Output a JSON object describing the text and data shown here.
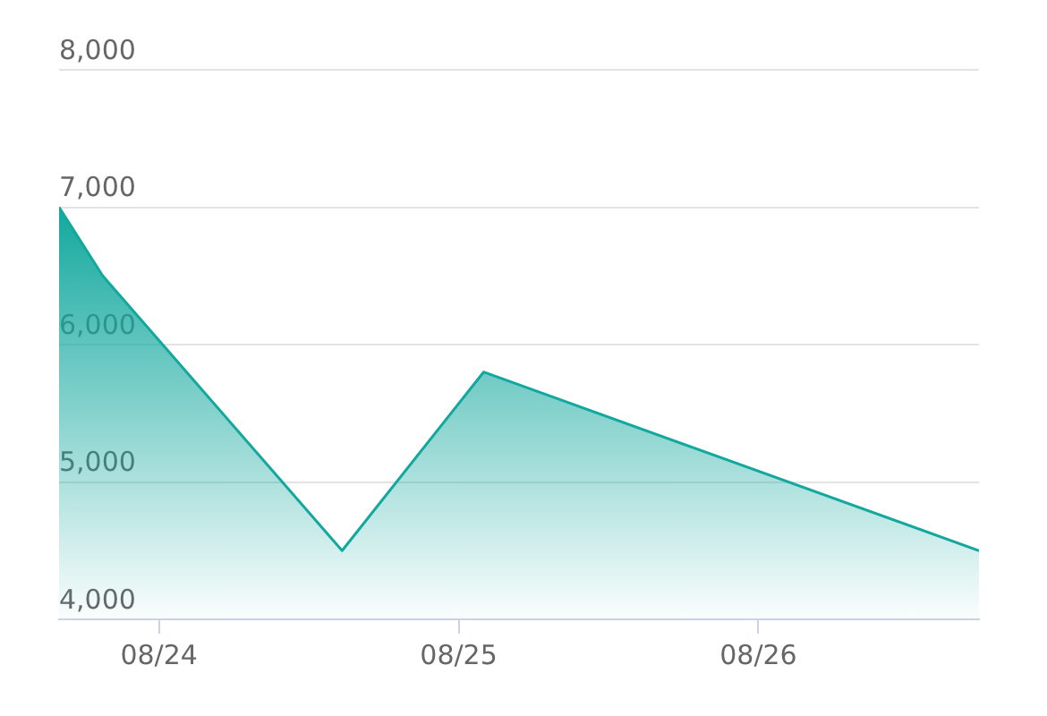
{
  "chart_data": {
    "type": "area",
    "x": [
      "--08-23T16:00",
      "--08-23T19:30",
      "--08-24T14:40",
      "--08-25T02:00",
      "--08-26T17:40"
    ],
    "series": [
      {
        "color": "#13a89e",
        "values": [
          7000,
          6500,
          4500,
          5800,
          4500
        ]
      }
    ],
    "xlim": [
      "--08-23T16:00",
      "--08-26T17:40"
    ],
    "xticks": [
      {
        "value": "--08-24",
        "label": "08/24"
      },
      {
        "value": "--08-25",
        "label": "08/25"
      },
      {
        "value": "--08-26",
        "label": "08/26"
      }
    ],
    "ylim": [
      4000,
      8000
    ],
    "yticks": [
      {
        "value": 4000,
        "label": "4,000"
      },
      {
        "value": 5000,
        "label": "5,000"
      },
      {
        "value": 6000,
        "label": "6,000"
      },
      {
        "value": 7000,
        "label": "7,000"
      },
      {
        "value": 8000,
        "label": "8,000"
      }
    ],
    "grid": "y",
    "legend": false,
    "marker": "none",
    "line_style": "solid"
  }
}
